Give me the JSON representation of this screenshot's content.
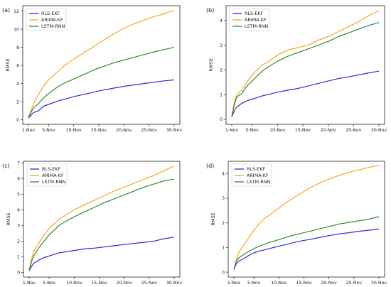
{
  "chart_data": [
    {
      "panel": "(a)",
      "type": "line",
      "ylabel": "RMSE",
      "xticks": [
        "1-Nov",
        "5-Nov",
        "10-Nov",
        "15-Nov",
        "20-Nov",
        "25-Nov",
        "30-Nov"
      ],
      "xlim": [
        1,
        30
      ],
      "ylim": [
        -0.5,
        12.6
      ],
      "yticks": [
        0,
        2,
        4,
        6,
        8,
        10,
        12
      ],
      "legend": "top-left",
      "series": [
        {
          "name": "RLS-EKF",
          "color": "#2b2bd6",
          "x": [
            1,
            1.5,
            2,
            3,
            4,
            5,
            6,
            7,
            8,
            10,
            12,
            14,
            16,
            18,
            20,
            22,
            24,
            26,
            28,
            30
          ],
          "values": [
            0.2,
            0.5,
            0.8,
            1.0,
            1.5,
            1.7,
            1.9,
            2.1,
            2.25,
            2.55,
            2.8,
            3.05,
            3.3,
            3.5,
            3.7,
            3.85,
            4.0,
            4.15,
            4.3,
            4.4
          ]
        },
        {
          "name": "ARIMA-KF",
          "color": "#f5a623",
          "x": [
            1,
            1.5,
            2,
            3,
            4,
            5,
            6,
            7,
            8,
            10,
            12,
            14,
            16,
            18,
            20,
            22,
            24,
            26,
            28,
            30
          ],
          "values": [
            0.3,
            1.0,
            1.8,
            2.8,
            3.7,
            4.4,
            4.9,
            5.4,
            5.9,
            6.7,
            7.4,
            8.1,
            8.8,
            9.5,
            10.1,
            10.6,
            11.0,
            11.4,
            11.7,
            12.1
          ]
        },
        {
          "name": "LSTM-RNN",
          "color": "#2e8b2e",
          "x": [
            1,
            1.5,
            2,
            3,
            4,
            5,
            6,
            7,
            8,
            10,
            12,
            14,
            16,
            18,
            20,
            22,
            24,
            26,
            28,
            30
          ],
          "values": [
            0.2,
            0.8,
            1.3,
            1.8,
            2.4,
            2.9,
            3.3,
            3.7,
            4.0,
            4.5,
            5.0,
            5.5,
            5.9,
            6.3,
            6.6,
            6.9,
            7.2,
            7.5,
            7.75,
            8.0
          ]
        }
      ]
    },
    {
      "panel": "(b)",
      "type": "line",
      "ylabel": "RMSE",
      "xticks": [
        "1-Nov",
        "5-Nov",
        "10-Nov",
        "15-Nov",
        "20-Nov",
        "25-Nov",
        "30-Nov"
      ],
      "xlim": [
        1,
        30
      ],
      "ylim": [
        -0.2,
        4.6
      ],
      "yticks": [
        0,
        1,
        2,
        3,
        4
      ],
      "legend": "top-left",
      "series": [
        {
          "name": "RLS-EKF",
          "color": "#2b2bd6",
          "x": [
            1,
            1.5,
            2,
            3,
            4,
            5,
            6,
            7,
            8,
            10,
            12,
            14,
            16,
            18,
            20,
            22,
            24,
            26,
            28,
            30
          ],
          "values": [
            0.1,
            0.35,
            0.5,
            0.65,
            0.75,
            0.82,
            0.88,
            0.95,
            1.0,
            1.1,
            1.18,
            1.25,
            1.35,
            1.45,
            1.55,
            1.65,
            1.72,
            1.8,
            1.88,
            1.95
          ]
        },
        {
          "name": "ARIMA-KF",
          "color": "#f5a623",
          "x": [
            1,
            1.5,
            2,
            3,
            4,
            5,
            6,
            7,
            8,
            10,
            12,
            14,
            16,
            18,
            20,
            22,
            24,
            26,
            28,
            30
          ],
          "values": [
            0.15,
            0.7,
            1.0,
            1.2,
            1.5,
            1.8,
            2.0,
            2.2,
            2.3,
            2.6,
            2.8,
            2.9,
            3.0,
            3.2,
            3.35,
            3.55,
            3.75,
            3.95,
            4.2,
            4.4
          ]
        },
        {
          "name": "LSTM-RNN",
          "color": "#2e8b2e",
          "x": [
            1,
            1.5,
            2,
            3,
            4,
            5,
            6,
            7,
            8,
            10,
            12,
            14,
            16,
            18,
            20,
            22,
            24,
            26,
            28,
            30
          ],
          "values": [
            0.1,
            0.6,
            0.9,
            1.05,
            1.35,
            1.55,
            1.75,
            1.95,
            2.1,
            2.35,
            2.55,
            2.7,
            2.85,
            3.0,
            3.15,
            3.35,
            3.5,
            3.65,
            3.8,
            3.92
          ]
        }
      ]
    },
    {
      "panel": "(c)",
      "type": "line",
      "ylabel": "RMSE",
      "xticks": [
        "1-Nov",
        "5-Nov",
        "10-Nov",
        "15-Nov",
        "20-Nov",
        "25-Nov",
        "30-Nov"
      ],
      "xlim": [
        1,
        30
      ],
      "ylim": [
        -0.3,
        7.1
      ],
      "yticks": [
        0,
        1,
        2,
        3,
        4,
        5,
        6,
        7
      ],
      "legend": "top-left",
      "series": [
        {
          "name": "RLS-EKF",
          "color": "#2b2bd6",
          "x": [
            1,
            1.5,
            2,
            3,
            4,
            5,
            6,
            7,
            8,
            10,
            12,
            14,
            16,
            18,
            20,
            22,
            24,
            26,
            28,
            30
          ],
          "values": [
            0.1,
            0.4,
            0.6,
            0.8,
            0.95,
            1.05,
            1.15,
            1.25,
            1.3,
            1.4,
            1.5,
            1.55,
            1.62,
            1.7,
            1.78,
            1.85,
            1.92,
            2.0,
            2.15,
            2.25
          ]
        },
        {
          "name": "ARIMA-KF",
          "color": "#f5a623",
          "x": [
            1,
            1.5,
            2,
            3,
            4,
            5,
            6,
            7,
            8,
            10,
            12,
            14,
            16,
            18,
            20,
            22,
            24,
            26,
            28,
            30
          ],
          "values": [
            0.15,
            0.9,
            1.4,
            1.9,
            2.4,
            2.8,
            3.1,
            3.4,
            3.6,
            4.0,
            4.3,
            4.6,
            4.9,
            5.2,
            5.45,
            5.7,
            5.95,
            6.2,
            6.5,
            6.8
          ]
        },
        {
          "name": "LSTM-RNN",
          "color": "#2e8b2e",
          "x": [
            1,
            1.5,
            2,
            3,
            4,
            5,
            6,
            7,
            8,
            10,
            12,
            14,
            16,
            18,
            20,
            22,
            24,
            26,
            28,
            30
          ],
          "values": [
            0.1,
            0.7,
            1.1,
            1.6,
            2.0,
            2.4,
            2.7,
            3.0,
            3.2,
            3.55,
            3.85,
            4.15,
            4.45,
            4.7,
            4.95,
            5.2,
            5.45,
            5.65,
            5.85,
            5.95
          ]
        }
      ]
    },
    {
      "panel": "(d)",
      "type": "line",
      "ylabel": "RMSE",
      "xticks": [
        "1-Nov",
        "5-Nov",
        "10-Nov",
        "15-Nov",
        "20-Nov",
        "25-Nov",
        "30-Nov"
      ],
      "xlim": [
        1,
        30
      ],
      "ylim": [
        -0.2,
        4.5
      ],
      "yticks": [
        0,
        1,
        2,
        3,
        4
      ],
      "legend": "top-left",
      "series": [
        {
          "name": "RLS-EKF",
          "color": "#2b2bd6",
          "x": [
            1,
            1.5,
            2,
            3,
            4,
            5,
            6,
            7,
            8,
            10,
            12,
            14,
            16,
            18,
            20,
            22,
            24,
            26,
            28,
            30
          ],
          "values": [
            0.1,
            0.35,
            0.45,
            0.55,
            0.68,
            0.78,
            0.85,
            0.9,
            0.95,
            1.05,
            1.15,
            1.25,
            1.32,
            1.4,
            1.48,
            1.55,
            1.6,
            1.66,
            1.7,
            1.75
          ]
        },
        {
          "name": "ARIMA-KF",
          "color": "#f5a623",
          "x": [
            1,
            1.5,
            2,
            3,
            4,
            5,
            6,
            7,
            8,
            10,
            12,
            14,
            16,
            18,
            20,
            22,
            24,
            26,
            28,
            30
          ],
          "values": [
            0.1,
            0.5,
            0.8,
            1.1,
            1.4,
            1.7,
            1.95,
            2.15,
            2.3,
            2.6,
            2.9,
            3.15,
            3.4,
            3.6,
            3.78,
            3.92,
            4.05,
            4.15,
            4.25,
            4.35
          ]
        },
        {
          "name": "LSTM-RNN",
          "color": "#2e8b2e",
          "x": [
            1,
            1.5,
            2,
            3,
            4,
            5,
            6,
            7,
            8,
            10,
            12,
            14,
            16,
            18,
            20,
            22,
            24,
            26,
            28,
            30
          ],
          "values": [
            0.1,
            0.45,
            0.58,
            0.72,
            0.85,
            0.95,
            1.05,
            1.12,
            1.2,
            1.32,
            1.45,
            1.55,
            1.65,
            1.75,
            1.85,
            1.95,
            2.02,
            2.08,
            2.15,
            2.25
          ]
        }
      ]
    }
  ]
}
